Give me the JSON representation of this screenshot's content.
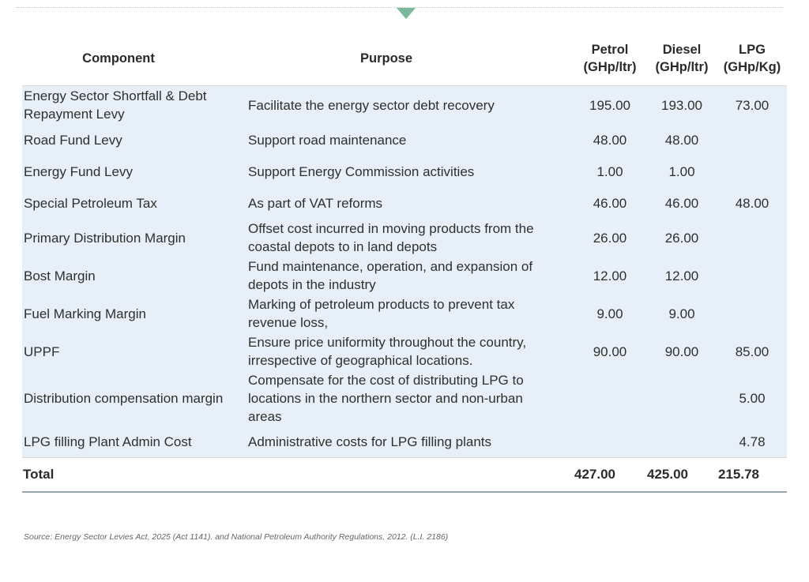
{
  "header": {
    "component": "Component",
    "purpose": "Purpose",
    "petrol": [
      "Petrol",
      "(GHp/ltr)"
    ],
    "diesel": [
      "Diesel",
      "(GHp/ltr)"
    ],
    "lpg": [
      "LPG",
      "(GHp/Kg)"
    ]
  },
  "rows": [
    {
      "component": [
        "Energy Sector Shortfall & Debt",
        "Repayment Levy"
      ],
      "purpose": [
        "Facilitate the energy sector debt recovery"
      ],
      "petrol": "195.00",
      "diesel": "193.00",
      "lpg": "73.00"
    },
    {
      "component": [
        "Road Fund Levy"
      ],
      "purpose": [
        "Support road maintenance"
      ],
      "petrol": "48.00",
      "diesel": "48.00",
      "lpg": ""
    },
    {
      "component": [
        "Energy Fund Levy"
      ],
      "purpose": [
        "Support Energy Commission activities"
      ],
      "petrol": "1.00",
      "diesel": "1.00",
      "lpg": ""
    },
    {
      "component": [
        "Special Petroleum Tax"
      ],
      "purpose": [
        "As part of VAT reforms"
      ],
      "petrol": "46.00",
      "diesel": "46.00",
      "lpg": "48.00"
    },
    {
      "component": [
        "Primary Distribution Margin"
      ],
      "purpose": [
        "Offset cost incurred in moving products from the",
        "coastal depots to in land depots"
      ],
      "petrol": "26.00",
      "diesel": "26.00",
      "lpg": ""
    },
    {
      "component": [
        "Bost Margin"
      ],
      "purpose": [
        "Fund maintenance, operation, and expansion of",
        "depots in the industry"
      ],
      "petrol": "12.00",
      "diesel": "12.00",
      "lpg": ""
    },
    {
      "component": [
        "Fuel Marking Margin"
      ],
      "purpose": [
        "Marking of petroleum products to prevent tax",
        "revenue loss,"
      ],
      "petrol": "9.00",
      "diesel": "9.00",
      "lpg": ""
    },
    {
      "component": [
        "UPPF"
      ],
      "purpose": [
        "Ensure price uniformity throughout the country,",
        "irrespective of geographical locations."
      ],
      "petrol": "90.00",
      "diesel": "90.00",
      "lpg": "85.00"
    },
    {
      "component": [
        "Distribution compensation margin"
      ],
      "purpose": [
        "Compensate for the cost of distributing LPG to",
        "locations in the northern sector and non-urban",
        "areas"
      ],
      "petrol": "",
      "diesel": "",
      "lpg": "5.00"
    },
    {
      "component": [
        "LPG filling Plant Admin Cost"
      ],
      "purpose": [
        "Administrative costs for LPG filling plants"
      ],
      "petrol": "",
      "diesel": "",
      "lpg": "4.78"
    }
  ],
  "total": {
    "label": "Total",
    "petrol": "427.00",
    "diesel": "425.00",
    "lpg": "215.78"
  },
  "source": "Source: Energy Sector Levies Act, 2025 (Act 1141). and National Petroleum Authority Regulations, 2012. (L.I. 2186)"
}
